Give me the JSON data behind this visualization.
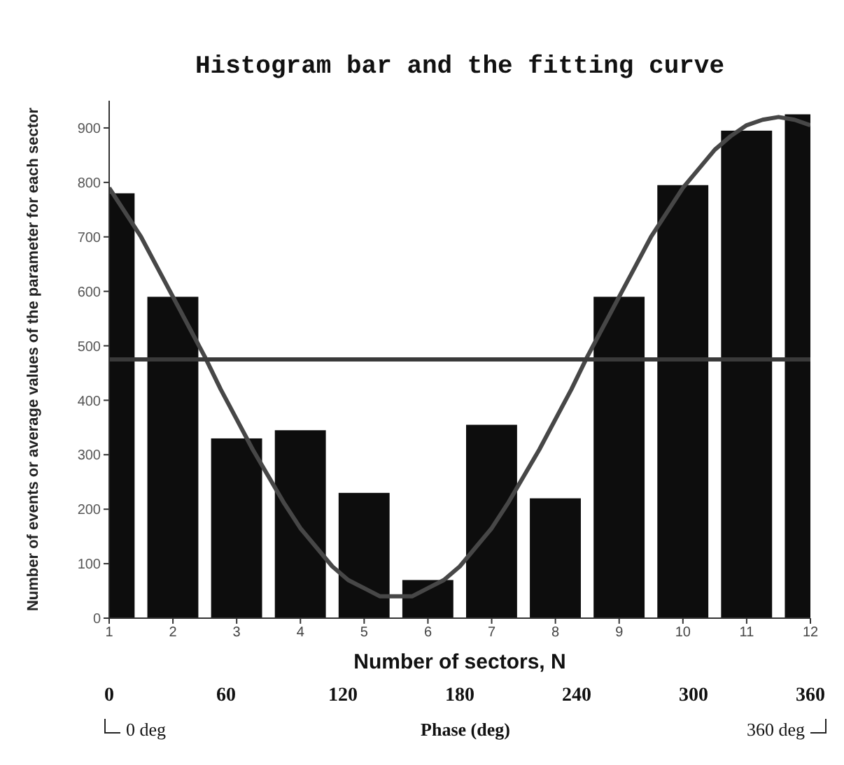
{
  "chart_data": {
    "type": "bar",
    "title": "Histogram bar and the fitting curve",
    "xlabel": "Number of sectors, N",
    "ylabel": "Number of events or average values of the parameter for each sector",
    "x2label": "Phase (deg)",
    "x": [
      1,
      2,
      3,
      4,
      5,
      6,
      7,
      8,
      9,
      10,
      11,
      12
    ],
    "series": [
      {
        "color": "#0d0d0d",
        "values": [
          780,
          590,
          330,
          345,
          230,
          70,
          355,
          220,
          590,
          795,
          895,
          925
        ]
      },
      {
        "type": "line",
        "color": "#474747",
        "x": [
          1,
          1.25,
          1.5,
          1.75,
          2,
          2.25,
          2.5,
          2.75,
          3,
          3.25,
          3.5,
          3.75,
          4,
          4.25,
          4.5,
          4.75,
          5,
          5.25,
          5.5,
          5.75,
          6,
          6.25,
          6.5,
          6.75,
          7,
          7.25,
          7.5,
          7.75,
          8,
          8.25,
          8.5,
          8.75,
          9,
          9.25,
          9.5,
          9.75,
          10,
          10.25,
          10.5,
          10.75,
          11,
          11.25,
          11.5,
          11.75,
          12
        ],
        "values": [
          790,
          745,
          700,
          645,
          590,
          535,
          480,
          420,
          365,
          310,
          260,
          210,
          165,
          130,
          95,
          70,
          55,
          40,
          40,
          40,
          55,
          70,
          95,
          130,
          165,
          210,
          260,
          310,
          365,
          420,
          480,
          535,
          590,
          645,
          700,
          745,
          790,
          825,
          860,
          885,
          905,
          915,
          920,
          915,
          905
        ]
      }
    ],
    "xlim": [
      1,
      12
    ],
    "xticks": [
      1,
      2,
      3,
      4,
      5,
      6,
      7,
      8,
      9,
      10,
      11,
      12
    ],
    "ylim": [
      0,
      950
    ],
    "yticks": [
      0,
      100,
      200,
      300,
      400,
      500,
      600,
      700,
      800,
      900
    ],
    "x2lim": [
      0,
      360
    ],
    "x2ticks": [
      0,
      60,
      120,
      180,
      240,
      300,
      360
    ],
    "ref_lines": [
      {
        "axis": "y",
        "value": 475,
        "color": "#3a3a3a"
      }
    ],
    "annotations": [
      "0 deg",
      "360 deg"
    ]
  }
}
